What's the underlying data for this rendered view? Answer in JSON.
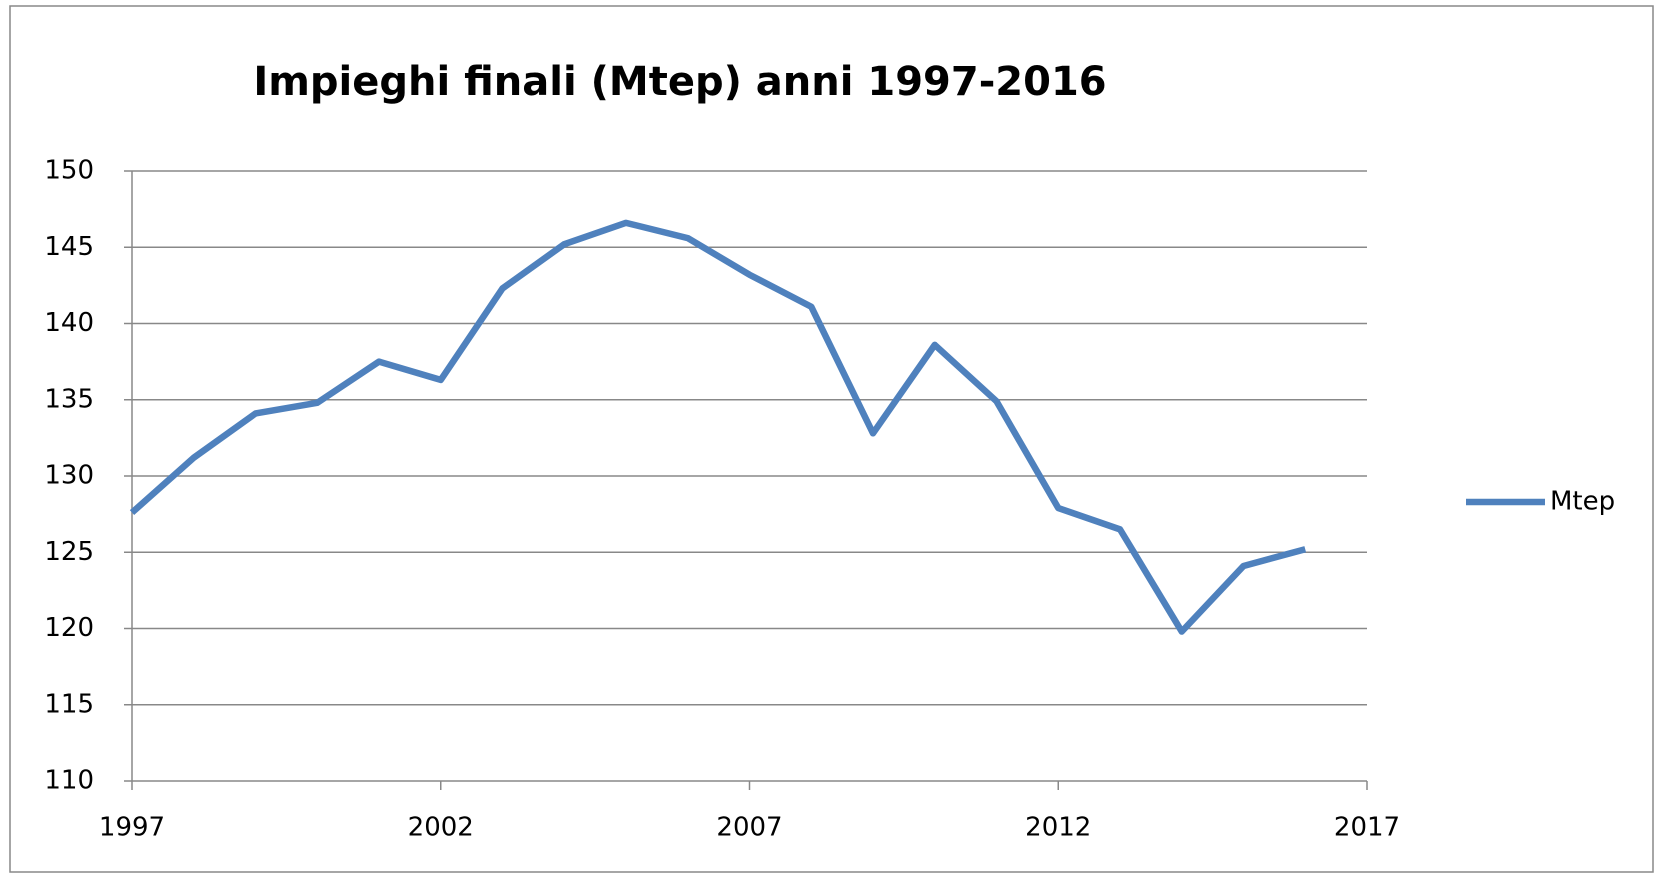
{
  "chart_data": {
    "type": "line",
    "title": "Impieghi finali (Mtep) anni 1997-2016",
    "x": [
      1997,
      1998,
      1999,
      2000,
      2001,
      2002,
      2003,
      2004,
      2005,
      2006,
      2007,
      2008,
      2009,
      2010,
      2011,
      2012,
      2013,
      2014,
      2015,
      2016
    ],
    "series": [
      {
        "name": "Mtep",
        "color": "#4f81bd",
        "values": [
          127.6,
          131.2,
          134.1,
          134.8,
          137.5,
          136.3,
          142.3,
          145.2,
          146.6,
          145.6,
          143.2,
          141.1,
          132.8,
          138.6,
          134.9,
          127.9,
          126.5,
          119.8,
          124.1,
          125.2
        ]
      }
    ],
    "xlim": [
      1997,
      2017
    ],
    "xticks": [
      1997,
      2002,
      2007,
      2012,
      2017
    ],
    "ylim": [
      110,
      150
    ],
    "yticks": [
      110,
      115,
      120,
      125,
      130,
      135,
      140,
      145,
      150
    ],
    "grid": true,
    "legend": "right"
  }
}
